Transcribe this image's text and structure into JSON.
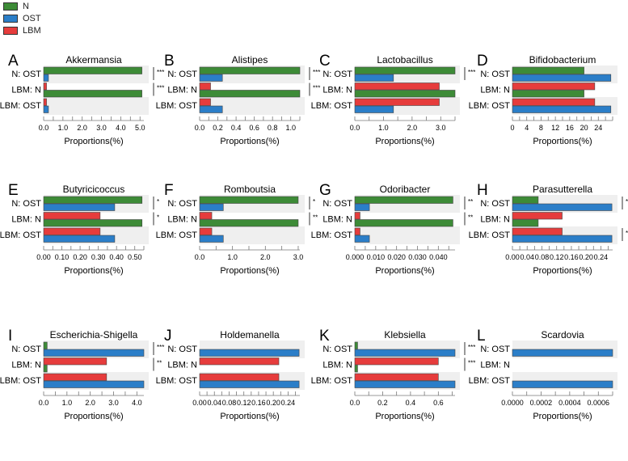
{
  "legend": [
    {
      "key": "N",
      "label": "N",
      "color": "#3d8b37"
    },
    {
      "key": "OST",
      "label": "OST",
      "color": "#2b7ec8"
    },
    {
      "key": "LBM",
      "label": "LBM",
      "color": "#e63c3c"
    }
  ],
  "chart_data": [
    {
      "type": "bar",
      "orientation": "horizontal",
      "letter": "A",
      "title": "Akkermansia",
      "xlabel": "Proportions(%)",
      "xlim": [
        0,
        5.2
      ],
      "ticks": [
        {
          "v": 0,
          "label": "0.0"
        },
        {
          "v": 1,
          "label": "1.0"
        },
        {
          "v": 2,
          "label": "2.0"
        },
        {
          "v": 3,
          "label": "3.0"
        },
        {
          "v": 4,
          "label": "4.0"
        },
        {
          "v": 5,
          "label": "5.0"
        }
      ],
      "groups": [
        "N: OST",
        "LBM: N",
        "LBM: OST"
      ],
      "values": {
        "N": 5.1,
        "OST": 0.25,
        "LBM": 0.15
      },
      "significance": [
        "***",
        "***",
        ""
      ]
    },
    {
      "type": "bar",
      "orientation": "horizontal",
      "letter": "B",
      "title": "Alistipes",
      "xlabel": "Proportions(%)",
      "xlim": [
        0,
        1.1
      ],
      "ticks": [
        {
          "v": 0,
          "label": "0.0"
        },
        {
          "v": 0.2,
          "label": "0.2"
        },
        {
          "v": 0.4,
          "label": "0.4"
        },
        {
          "v": 0.6,
          "label": "0.6"
        },
        {
          "v": 0.8,
          "label": "0.8"
        },
        {
          "v": 1.0,
          "label": "1.0"
        }
      ],
      "groups": [
        "N: OST",
        "LBM: N",
        "LBM: OST"
      ],
      "values": {
        "N": 1.1,
        "OST": 0.25,
        "LBM": 0.12
      },
      "significance": [
        "***",
        "***",
        ""
      ]
    },
    {
      "type": "bar",
      "orientation": "horizontal",
      "letter": "C",
      "title": "Lactobacillus",
      "xlabel": "Proportions(%)",
      "xlim": [
        0,
        3.5
      ],
      "ticks": [
        {
          "v": 0,
          "label": "0.0"
        },
        {
          "v": 1,
          "label": "1.0"
        },
        {
          "v": 2,
          "label": "2.0"
        },
        {
          "v": 3,
          "label": "3.0"
        }
      ],
      "groups": [
        "N: OST",
        "LBM: N",
        "LBM: OST"
      ],
      "values": {
        "N": 3.5,
        "OST": 1.35,
        "LBM": 2.95
      },
      "significance": [
        "***",
        "",
        ""
      ]
    },
    {
      "type": "bar",
      "orientation": "horizontal",
      "letter": "D",
      "title": "Bifidobacterium",
      "xlabel": "Proportions(%)",
      "xlim": [
        0,
        28
      ],
      "ticks": [
        {
          "v": 0,
          "label": "0"
        },
        {
          "v": 4,
          "label": "4"
        },
        {
          "v": 8,
          "label": "8"
        },
        {
          "v": 12,
          "label": "12"
        },
        {
          "v": 16,
          "label": "16"
        },
        {
          "v": 20,
          "label": "20"
        },
        {
          "v": 24,
          "label": "24"
        }
      ],
      "groups": [
        "N: OST",
        "LBM: N",
        "LBM: OST"
      ],
      "values": {
        "N": 20,
        "OST": 27.5,
        "LBM": 23
      },
      "significance": [
        "",
        "",
        ""
      ]
    },
    {
      "type": "bar",
      "orientation": "horizontal",
      "letter": "E",
      "title": "Butyricicoccus",
      "xlabel": "Proportions(%)",
      "xlim": [
        0,
        0.55
      ],
      "ticks": [
        {
          "v": 0,
          "label": "0.00"
        },
        {
          "v": 0.1,
          "label": "0.10"
        },
        {
          "v": 0.2,
          "label": "0.20"
        },
        {
          "v": 0.3,
          "label": "0.30"
        },
        {
          "v": 0.4,
          "label": "0.40"
        },
        {
          "v": 0.5,
          "label": "0.50"
        }
      ],
      "groups": [
        "N: OST",
        "LBM: N",
        "LBM: OST"
      ],
      "values": {
        "N": 0.54,
        "OST": 0.39,
        "LBM": 0.31
      },
      "significance": [
        "*",
        "*",
        ""
      ]
    },
    {
      "type": "bar",
      "orientation": "horizontal",
      "letter": "F",
      "title": "Romboutsia",
      "xlabel": "Proportions(%)",
      "xlim": [
        0,
        3.05
      ],
      "ticks": [
        {
          "v": 0,
          "label": "0.0"
        },
        {
          "v": 1,
          "label": "1.0"
        },
        {
          "v": 2,
          "label": "2.0"
        },
        {
          "v": 3,
          "label": "3.0"
        }
      ],
      "groups": [
        "N: OST",
        "LBM: N",
        "LBM: OST"
      ],
      "values": {
        "N": 3.0,
        "OST": 0.72,
        "LBM": 0.37
      },
      "significance": [
        "*",
        "**",
        ""
      ]
    },
    {
      "type": "bar",
      "orientation": "horizontal",
      "letter": "G",
      "title": "Odoribacter",
      "xlabel": "Proportions(%)",
      "xlim": [
        0,
        0.048
      ],
      "ticks": [
        {
          "v": 0,
          "label": "0.000"
        },
        {
          "v": 0.01,
          "label": "0.010"
        },
        {
          "v": 0.02,
          "label": "0.020"
        },
        {
          "v": 0.03,
          "label": "0.030"
        },
        {
          "v": 0.04,
          "label": "0.040"
        }
      ],
      "groups": [
        "N: OST",
        "LBM: N",
        "LBM: OST"
      ],
      "values": {
        "N": 0.047,
        "OST": 0.007,
        "LBM": 0.0025
      },
      "significance": [
        "**",
        "**",
        ""
      ]
    },
    {
      "type": "bar",
      "orientation": "horizontal",
      "letter": "H",
      "title": "Parasutterella",
      "xlabel": "Proportions(%)",
      "xlim": [
        0,
        0.272
      ],
      "ticks": [
        {
          "v": 0,
          "label": "0.00"
        },
        {
          "v": 0.04,
          "label": "0.04"
        },
        {
          "v": 0.08,
          "label": "0.08"
        },
        {
          "v": 0.12,
          "label": "0.12"
        },
        {
          "v": 0.16,
          "label": "0.16"
        },
        {
          "v": 0.2,
          "label": "0.20"
        },
        {
          "v": 0.24,
          "label": "0.24"
        }
      ],
      "groups": [
        "N: OST",
        "LBM: N",
        "LBM: OST"
      ],
      "values": {
        "N": 0.07,
        "OST": 0.27,
        "LBM": 0.135
      },
      "significance": [
        "***",
        "",
        "**"
      ]
    },
    {
      "type": "bar",
      "orientation": "horizontal",
      "letter": "I",
      "title": "Escherichia-Shigella",
      "xlabel": "Proportions(%)",
      "xlim": [
        0,
        4.3
      ],
      "ticks": [
        {
          "v": 0,
          "label": "0.0"
        },
        {
          "v": 1,
          "label": "1.0"
        },
        {
          "v": 2,
          "label": "2.0"
        },
        {
          "v": 3,
          "label": "3.0"
        },
        {
          "v": 4,
          "label": "4.0"
        }
      ],
      "groups": [
        "N: OST",
        "LBM: N",
        "LBM: OST"
      ],
      "values": {
        "N": 0.15,
        "OST": 4.3,
        "LBM": 2.7
      },
      "significance": [
        "***",
        "**",
        ""
      ]
    },
    {
      "type": "bar",
      "orientation": "horizontal",
      "letter": "J",
      "title": "Holdemanella",
      "xlabel": "Proportions(%)",
      "xlim": [
        0,
        0.272
      ],
      "ticks": [
        {
          "v": 0,
          "label": "0.00"
        },
        {
          "v": 0.04,
          "label": "0.04"
        },
        {
          "v": 0.08,
          "label": "0.08"
        },
        {
          "v": 0.12,
          "label": "0.12"
        },
        {
          "v": 0.16,
          "label": "0.16"
        },
        {
          "v": 0.2,
          "label": "0.20"
        },
        {
          "v": 0.24,
          "label": "0.24"
        }
      ],
      "groups": [
        "N: OST",
        "LBM: N",
        "LBM: OST"
      ],
      "values": {
        "N": 0,
        "OST": 0.27,
        "LBM": 0.215
      },
      "significance": [
        "",
        "",
        ""
      ]
    },
    {
      "type": "bar",
      "orientation": "horizontal",
      "letter": "K",
      "title": "Klebsiella",
      "xlabel": "Proportions(%)",
      "xlim": [
        0,
        0.72
      ],
      "ticks": [
        {
          "v": 0,
          "label": "0.0"
        },
        {
          "v": 0.2,
          "label": "0.2"
        },
        {
          "v": 0.4,
          "label": "0.4"
        },
        {
          "v": 0.6,
          "label": "0.6"
        }
      ],
      "groups": [
        "N: OST",
        "LBM: N",
        "LBM: OST"
      ],
      "values": {
        "N": 0.02,
        "OST": 0.72,
        "LBM": 0.6
      },
      "significance": [
        "***",
        "***",
        ""
      ]
    },
    {
      "type": "bar",
      "orientation": "horizontal",
      "letter": "L",
      "title": "Scardovia",
      "xlabel": "Proportions(%)",
      "xlim": [
        0,
        0.0007
      ],
      "ticks": [
        {
          "v": 0,
          "label": "0.0000"
        },
        {
          "v": 0.0002,
          "label": "0.0002"
        },
        {
          "v": 0.0004,
          "label": "0.0004"
        },
        {
          "v": 0.0006,
          "label": "0.0006"
        }
      ],
      "groups": [
        "N: OST",
        "LBM: N",
        "LBM: OST"
      ],
      "values": {
        "N": 0,
        "OST": 0.0007,
        "LBM": 0
      },
      "significance": [
        "",
        "",
        ""
      ]
    }
  ]
}
